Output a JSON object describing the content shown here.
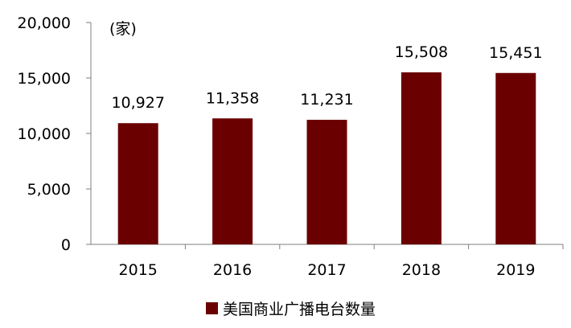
{
  "chart_data": {
    "type": "bar",
    "categories": [
      "2015",
      "2016",
      "2017",
      "2018",
      "2019"
    ],
    "values": [
      10927,
      11358,
      11231,
      15508,
      15451
    ],
    "value_labels": [
      "10,927",
      "11,358",
      "11,231",
      "15,508",
      "15,451"
    ],
    "unit_label": "(家)",
    "ylim": [
      0,
      20000
    ],
    "yticks": [
      0,
      5000,
      10000,
      15000,
      20000
    ],
    "ytick_labels": [
      "0",
      "5,000",
      "10,000",
      "15,000",
      "20,000"
    ],
    "grid": false,
    "legend_position": "bottom",
    "series": [
      {
        "name": "美国商业广播电台数量",
        "values": [
          10927,
          11358,
          11231,
          15508,
          15451
        ],
        "color": "#6b0000"
      }
    ]
  }
}
